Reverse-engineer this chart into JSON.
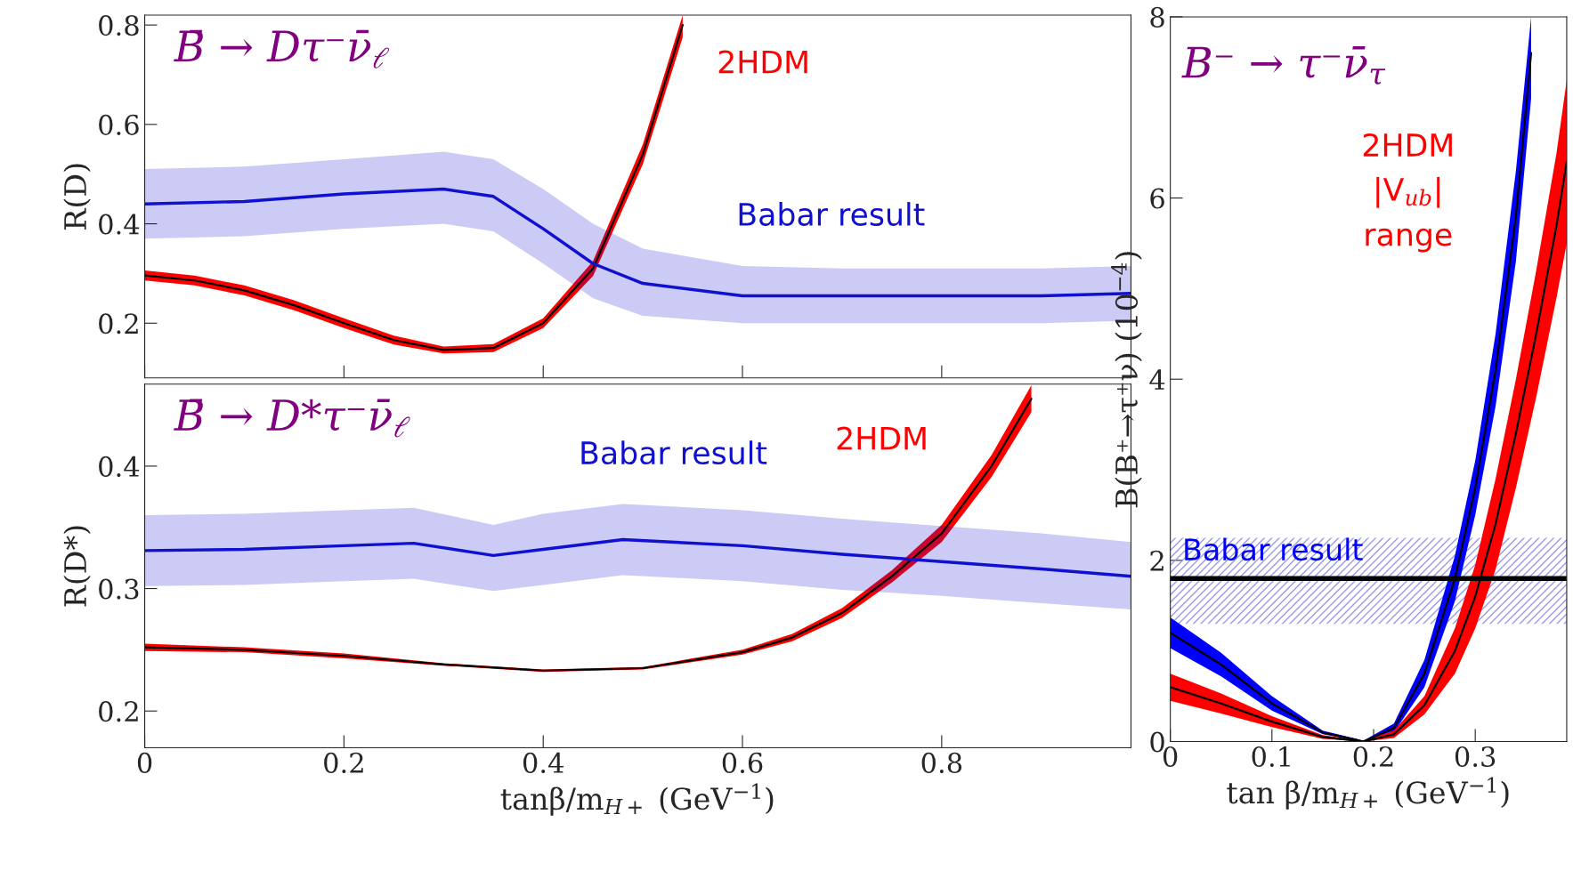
{
  "chart_data": [
    {
      "type": "line",
      "title": "B̄ → Dτ⁻ν̄$_{ℓ}$",
      "ylabel": "R(D)",
      "xlim": [
        0,
        0.99
      ],
      "ylim": [
        0.09,
        0.82
      ],
      "xticks": [
        0,
        0.2,
        0.4,
        0.6,
        0.8
      ],
      "yticks": [
        0.2,
        0.4,
        0.6,
        0.8
      ],
      "tick_labels": "y",
      "series": [
        {
          "name": "2HDM",
          "color": "#000000",
          "x": [
            0,
            0.05,
            0.1,
            0.15,
            0.2,
            0.25,
            0.3,
            0.35,
            0.4,
            0.45,
            0.5,
            0.54
          ],
          "values": [
            0.296,
            0.286,
            0.266,
            0.236,
            0.2,
            0.166,
            0.146,
            0.15,
            0.2,
            0.31,
            0.54,
            0.8
          ],
          "lower": [
            0.286,
            0.276,
            0.256,
            0.226,
            0.19,
            0.157,
            0.139,
            0.142,
            0.19,
            0.295,
            0.52,
            0.775
          ],
          "upper": [
            0.306,
            0.296,
            0.276,
            0.246,
            0.21,
            0.175,
            0.153,
            0.158,
            0.21,
            0.325,
            0.56,
            0.82
          ]
        },
        {
          "name": "Babar result",
          "color": "#1010d0",
          "x": [
            0,
            0.1,
            0.2,
            0.3,
            0.35,
            0.4,
            0.45,
            0.5,
            0.6,
            0.7,
            0.8,
            0.9,
            0.99
          ],
          "values": [
            0.44,
            0.445,
            0.46,
            0.47,
            0.455,
            0.39,
            0.32,
            0.28,
            0.255,
            0.255,
            0.255,
            0.255,
            0.26
          ],
          "lower": [
            0.37,
            0.375,
            0.39,
            0.4,
            0.385,
            0.32,
            0.25,
            0.215,
            0.2,
            0.2,
            0.2,
            0.2,
            0.205
          ],
          "upper": [
            0.51,
            0.515,
            0.53,
            0.545,
            0.53,
            0.47,
            0.4,
            0.35,
            0.315,
            0.31,
            0.31,
            0.31,
            0.315
          ]
        }
      ]
    },
    {
      "type": "line",
      "title": "B̄ → D*τ⁻ν̄$_{ℓ}$",
      "xlabel": "tanβ/m$_{H+}$ (GeV$^{−1}$)",
      "ylabel": "R(D*)",
      "xlim": [
        0,
        0.99
      ],
      "ylim": [
        0.17,
        0.467
      ],
      "xticks": [
        0,
        0.2,
        0.4,
        0.6,
        0.8
      ],
      "yticks": [
        0.2,
        0.3,
        0.4
      ],
      "series": [
        {
          "name": "2HDM",
          "color": "#000000",
          "x": [
            0,
            0.1,
            0.2,
            0.3,
            0.4,
            0.5,
            0.6,
            0.65,
            0.7,
            0.75,
            0.8,
            0.85,
            0.89
          ],
          "values": [
            0.252,
            0.25,
            0.245,
            0.238,
            0.233,
            0.235,
            0.248,
            0.26,
            0.28,
            0.31,
            0.345,
            0.4,
            0.455
          ],
          "lower": [
            0.249,
            0.248,
            0.243,
            0.237,
            0.232,
            0.234,
            0.246,
            0.257,
            0.276,
            0.305,
            0.338,
            0.391,
            0.444
          ],
          "upper": [
            0.255,
            0.252,
            0.247,
            0.239,
            0.234,
            0.236,
            0.25,
            0.263,
            0.284,
            0.315,
            0.352,
            0.409,
            0.466
          ]
        },
        {
          "name": "Babar result",
          "color": "#1010d0",
          "x": [
            0,
            0.1,
            0.2,
            0.27,
            0.35,
            0.4,
            0.48,
            0.6,
            0.7,
            0.8,
            0.9,
            0.99
          ],
          "values": [
            0.331,
            0.332,
            0.335,
            0.337,
            0.327,
            0.332,
            0.34,
            0.335,
            0.328,
            0.322,
            0.316,
            0.31
          ],
          "lower": [
            0.302,
            0.303,
            0.306,
            0.308,
            0.298,
            0.303,
            0.311,
            0.306,
            0.299,
            0.294,
            0.288,
            0.283
          ],
          "upper": [
            0.36,
            0.361,
            0.364,
            0.366,
            0.352,
            0.361,
            0.369,
            0.364,
            0.357,
            0.351,
            0.345,
            0.338
          ]
        }
      ]
    },
    {
      "type": "line",
      "title": "B⁻ → τ⁻ν̄$_{τ}$",
      "xlabel": "tan β/m$_{H+}$ (GeV$^{−1}$)",
      "ylabel": "B(B⁺→τ⁺ν) (10$^{−4}$)",
      "xlim": [
        0,
        0.39
      ],
      "ylim": [
        0,
        8
      ],
      "xticks": [
        0,
        0.1,
        0.2,
        0.3
      ],
      "yticks": [
        0,
        2,
        4,
        6,
        8
      ],
      "annotations": [
        "2HDM\n|V$_{ub}$|\nrange"
      ],
      "bands": [
        {
          "axis": "y",
          "from": 1.3,
          "to": 2.25,
          "label": "Babar result",
          "color": "#9999ee"
        }
      ],
      "ref_lines": [
        {
          "axis": "y",
          "value": 1.8,
          "color": "#000000"
        }
      ],
      "series": [
        {
          "color": "#000000",
          "x": [
            0,
            0.05,
            0.1,
            0.15,
            0.19,
            0.22,
            0.25,
            0.28,
            0.3,
            0.32,
            0.34,
            0.355
          ],
          "values": [
            1.2,
            0.85,
            0.42,
            0.1,
            0,
            0.15,
            0.75,
            1.8,
            2.8,
            4.1,
            5.8,
            7.6
          ],
          "lower": [
            1.03,
            0.72,
            0.34,
            0.08,
            0,
            0.1,
            0.6,
            1.55,
            2.5,
            3.7,
            5.3,
            7.1
          ],
          "upper": [
            1.37,
            0.98,
            0.5,
            0.12,
            0.01,
            0.2,
            0.9,
            2.05,
            3.1,
            4.5,
            6.3,
            8.0
          ]
        },
        {
          "color": "#000000",
          "x": [
            0,
            0.05,
            0.1,
            0.15,
            0.19,
            0.22,
            0.25,
            0.28,
            0.3,
            0.32,
            0.34,
            0.36,
            0.38,
            0.39
          ],
          "values": [
            0.6,
            0.42,
            0.22,
            0.05,
            0,
            0.08,
            0.4,
            1.0,
            1.6,
            2.4,
            3.4,
            4.5,
            5.7,
            6.4
          ],
          "lower": [
            0.45,
            0.31,
            0.16,
            0.03,
            0,
            0.04,
            0.3,
            0.75,
            1.25,
            1.9,
            2.8,
            3.8,
            4.9,
            5.5
          ],
          "upper": [
            0.75,
            0.53,
            0.28,
            0.07,
            0.01,
            0.12,
            0.5,
            1.25,
            1.95,
            2.9,
            4.0,
            5.2,
            6.5,
            7.3
          ]
        }
      ]
    }
  ]
}
